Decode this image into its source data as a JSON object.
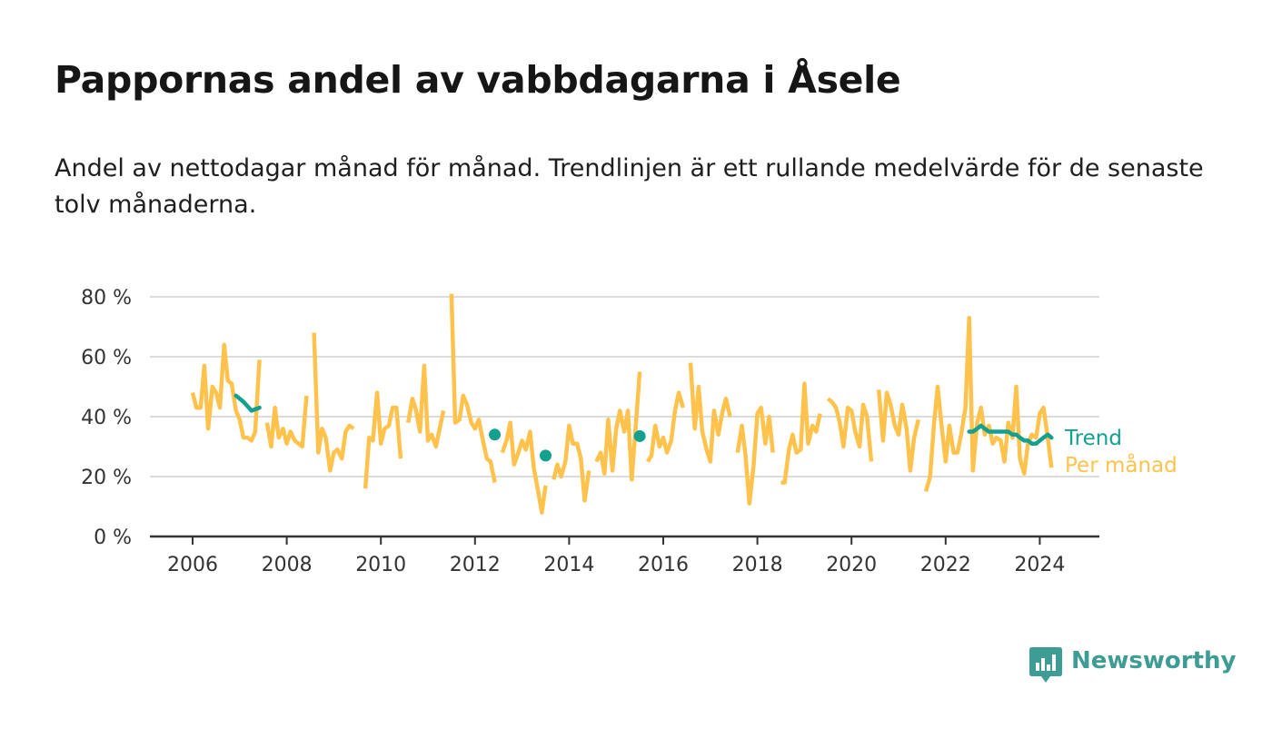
{
  "header": {
    "title": "Pappornas andel av vabbdagarna i Åsele",
    "subtitle": "Andel av nettodagar månad för månad. Trendlinjen är ett rullande medelvärde för de senaste tolv månaderna."
  },
  "brand": {
    "name": "Newsworthy",
    "icon": "newsworthy-logo-icon",
    "color": "#3d9c94"
  },
  "colors": {
    "monthly": "#ffc34d",
    "trend": "#13a08f",
    "grid": "#dcdcdc",
    "axis": "#333333"
  },
  "chart_data": {
    "type": "line",
    "title": "Pappornas andel av vabbdagarna i Åsele",
    "xlabel": "",
    "ylabel": "",
    "x_range": [
      2005.75,
      2024.75
    ],
    "ylim": [
      0,
      80
    ],
    "y_ticks": [
      0,
      20,
      40,
      60,
      80
    ],
    "y_tick_labels": [
      "0 %",
      "20 %",
      "40 %",
      "60 %",
      "80 %"
    ],
    "x_ticks": [
      2006,
      2008,
      2010,
      2012,
      2014,
      2016,
      2018,
      2020,
      2022,
      2024
    ],
    "x_tick_labels": [
      "2006",
      "2008",
      "2010",
      "2012",
      "2014",
      "2016",
      "2018",
      "2020",
      "2022",
      "2024"
    ],
    "grid": true,
    "legend": "right-end-labels",
    "series": [
      {
        "name": "Per månad",
        "color": "#ffc34d",
        "segments": [
          [
            [
              2006.0,
              48
            ],
            [
              2006.08,
              43
            ],
            [
              2006.17,
              43
            ],
            [
              2006.25,
              57
            ],
            [
              2006.33,
              36
            ],
            [
              2006.42,
              50
            ],
            [
              2006.5,
              48
            ],
            [
              2006.58,
              43
            ],
            [
              2006.67,
              64
            ],
            [
              2006.75,
              52
            ],
            [
              2006.83,
              51
            ],
            [
              2006.92,
              42
            ],
            [
              2007.0,
              39
            ],
            [
              2007.08,
              33
            ],
            [
              2007.17,
              33
            ],
            [
              2007.25,
              32
            ],
            [
              2007.33,
              35
            ],
            [
              2007.42,
              59
            ]
          ],
          [
            [
              2007.58,
              38
            ],
            [
              2007.67,
              30
            ],
            [
              2007.75,
              43
            ],
            [
              2007.83,
              33
            ],
            [
              2007.92,
              36
            ],
            [
              2008.0,
              31
            ],
            [
              2008.08,
              35
            ],
            [
              2008.17,
              32
            ],
            [
              2008.25,
              31
            ],
            [
              2008.33,
              30
            ],
            [
              2008.42,
              47
            ]
          ],
          [
            [
              2008.58,
              68
            ],
            [
              2008.67,
              28
            ],
            [
              2008.75,
              36
            ],
            [
              2008.83,
              33
            ],
            [
              2008.92,
              22
            ],
            [
              2009.0,
              28
            ],
            [
              2009.08,
              29
            ],
            [
              2009.17,
              26
            ],
            [
              2009.25,
              35
            ],
            [
              2009.33,
              37
            ],
            [
              2009.42,
              36
            ]
          ],
          [
            [
              2009.67,
              16
            ],
            [
              2009.75,
              33
            ],
            [
              2009.83,
              32
            ],
            [
              2009.92,
              48
            ],
            [
              2010.0,
              31
            ],
            [
              2010.08,
              36
            ],
            [
              2010.17,
              37
            ],
            [
              2010.25,
              43
            ],
            [
              2010.33,
              43
            ],
            [
              2010.42,
              26
            ]
          ],
          [
            [
              2010.58,
              38
            ],
            [
              2010.67,
              46
            ],
            [
              2010.75,
              42
            ],
            [
              2010.83,
              35
            ],
            [
              2010.92,
              57
            ],
            [
              2011.0,
              32
            ],
            [
              2011.08,
              34
            ],
            [
              2011.17,
              30
            ],
            [
              2011.25,
              36
            ],
            [
              2011.33,
              42
            ]
          ],
          [
            [
              2011.5,
              81
            ],
            [
              2011.58,
              38
            ],
            [
              2011.67,
              39
            ],
            [
              2011.75,
              47
            ],
            [
              2011.83,
              44
            ],
            [
              2011.92,
              38
            ],
            [
              2012.0,
              36
            ],
            [
              2012.08,
              39
            ],
            [
              2012.17,
              32
            ],
            [
              2012.25,
              26
            ],
            [
              2012.33,
              25
            ],
            [
              2012.42,
              18
            ]
          ],
          [
            [
              2012.58,
              28
            ],
            [
              2012.67,
              32
            ],
            [
              2012.75,
              38
            ],
            [
              2012.83,
              24
            ],
            [
              2012.92,
              28
            ],
            [
              2013.0,
              32
            ],
            [
              2013.08,
              29
            ],
            [
              2013.17,
              35
            ],
            [
              2013.25,
              23
            ],
            [
              2013.33,
              16
            ],
            [
              2013.42,
              8
            ],
            [
              2013.5,
              17
            ]
          ],
          [
            [
              2013.67,
              19
            ],
            [
              2013.75,
              24
            ],
            [
              2013.83,
              20
            ],
            [
              2013.92,
              25
            ],
            [
              2014.0,
              37
            ],
            [
              2014.08,
              31
            ],
            [
              2014.17,
              31
            ],
            [
              2014.25,
              26
            ],
            [
              2014.33,
              12
            ],
            [
              2014.42,
              22
            ]
          ],
          [
            [
              2014.58,
              25
            ],
            [
              2014.67,
              28
            ],
            [
              2014.75,
              21
            ],
            [
              2014.83,
              39
            ],
            [
              2014.92,
              22
            ],
            [
              2015.0,
              36
            ],
            [
              2015.08,
              42
            ],
            [
              2015.17,
              35
            ],
            [
              2015.25,
              42
            ],
            [
              2015.33,
              19
            ],
            [
              2015.42,
              38
            ],
            [
              2015.5,
              55
            ]
          ],
          [
            [
              2015.67,
              25
            ],
            [
              2015.75,
              27
            ],
            [
              2015.83,
              37
            ],
            [
              2015.92,
              30
            ],
            [
              2016.0,
              33
            ],
            [
              2016.08,
              28
            ],
            [
              2016.17,
              32
            ],
            [
              2016.25,
              42
            ],
            [
              2016.33,
              48
            ],
            [
              2016.42,
              43
            ]
          ],
          [
            [
              2016.58,
              58
            ],
            [
              2016.67,
              36
            ],
            [
              2016.75,
              50
            ],
            [
              2016.83,
              35
            ],
            [
              2016.92,
              29
            ],
            [
              2017.0,
              25
            ],
            [
              2017.08,
              42
            ],
            [
              2017.17,
              34
            ],
            [
              2017.25,
              41
            ],
            [
              2017.33,
              46
            ],
            [
              2017.42,
              40
            ]
          ],
          [
            [
              2017.58,
              28
            ],
            [
              2017.67,
              37
            ],
            [
              2017.75,
              27
            ],
            [
              2017.83,
              11
            ],
            [
              2017.92,
              24
            ],
            [
              2018.0,
              41
            ],
            [
              2018.08,
              43
            ],
            [
              2018.17,
              31
            ],
            [
              2018.25,
              40
            ],
            [
              2018.33,
              28
            ]
          ],
          [
            [
              2018.5,
              18
            ],
            [
              2018.58,
              18
            ],
            [
              2018.67,
              29
            ],
            [
              2018.75,
              34
            ],
            [
              2018.83,
              28
            ],
            [
              2018.92,
              29
            ],
            [
              2019.0,
              51
            ],
            [
              2019.08,
              31
            ],
            [
              2019.17,
              37
            ],
            [
              2019.25,
              35
            ],
            [
              2019.33,
              41
            ]
          ],
          [
            [
              2019.5,
              46
            ],
            [
              2019.58,
              45
            ],
            [
              2019.67,
              43
            ],
            [
              2019.75,
              38
            ],
            [
              2019.83,
              30
            ],
            [
              2019.92,
              43
            ],
            [
              2020.0,
              42
            ],
            [
              2020.08,
              35
            ],
            [
              2020.17,
              30
            ],
            [
              2020.25,
              44
            ],
            [
              2020.33,
              40
            ],
            [
              2020.42,
              25
            ]
          ],
          [
            [
              2020.58,
              49
            ],
            [
              2020.67,
              32
            ],
            [
              2020.75,
              48
            ],
            [
              2020.83,
              44
            ],
            [
              2020.92,
              37
            ],
            [
              2021.0,
              34
            ],
            [
              2021.08,
              44
            ],
            [
              2021.17,
              36
            ],
            [
              2021.25,
              22
            ],
            [
              2021.33,
              33
            ],
            [
              2021.42,
              39
            ]
          ],
          [
            [
              2021.58,
              15
            ],
            [
              2021.67,
              20
            ],
            [
              2021.75,
              37
            ],
            [
              2021.83,
              50
            ],
            [
              2021.92,
              36
            ],
            [
              2022.0,
              25
            ],
            [
              2022.08,
              37
            ],
            [
              2022.17,
              28
            ],
            [
              2022.25,
              28
            ],
            [
              2022.33,
              34
            ],
            [
              2022.42,
              43
            ],
            [
              2022.5,
              73
            ],
            [
              2022.58,
              22
            ],
            [
              2022.67,
              38
            ],
            [
              2022.75,
              43
            ],
            [
              2022.83,
              34
            ],
            [
              2022.92,
              37
            ],
            [
              2023.0,
              31
            ],
            [
              2023.08,
              33
            ],
            [
              2023.17,
              32
            ],
            [
              2023.25,
              25
            ],
            [
              2023.33,
              38
            ],
            [
              2023.42,
              33
            ],
            [
              2023.5,
              50
            ],
            [
              2023.58,
              26
            ],
            [
              2023.67,
              21
            ],
            [
              2023.75,
              31
            ],
            [
              2023.83,
              34
            ],
            [
              2023.92,
              33
            ],
            [
              2024.0,
              41
            ],
            [
              2024.08,
              43
            ],
            [
              2024.17,
              33
            ],
            [
              2024.25,
              23
            ]
          ]
        ]
      },
      {
        "name": "Trend",
        "color": "#13a08f",
        "segments": [
          [
            [
              2006.92,
              47
            ],
            [
              2007.08,
              45
            ],
            [
              2007.25,
              42
            ],
            [
              2007.42,
              43
            ]
          ],
          [
            [
              2022.5,
              35
            ],
            [
              2022.58,
              35
            ],
            [
              2022.67,
              36
            ],
            [
              2022.75,
              37
            ],
            [
              2022.83,
              36
            ],
            [
              2022.92,
              35
            ],
            [
              2023.0,
              35
            ],
            [
              2023.08,
              35
            ],
            [
              2023.17,
              35
            ],
            [
              2023.25,
              35
            ],
            [
              2023.33,
              35
            ],
            [
              2023.42,
              34
            ],
            [
              2023.5,
              34
            ],
            [
              2023.58,
              33
            ],
            [
              2023.67,
              32
            ],
            [
              2023.75,
              32
            ],
            [
              2023.83,
              31
            ],
            [
              2023.92,
              31
            ],
            [
              2024.0,
              32
            ],
            [
              2024.08,
              33
            ],
            [
              2024.17,
              34
            ],
            [
              2024.25,
              33
            ]
          ]
        ],
        "points": [
          [
            2012.42,
            34
          ],
          [
            2013.5,
            27
          ],
          [
            2015.5,
            33.5
          ]
        ]
      }
    ]
  }
}
